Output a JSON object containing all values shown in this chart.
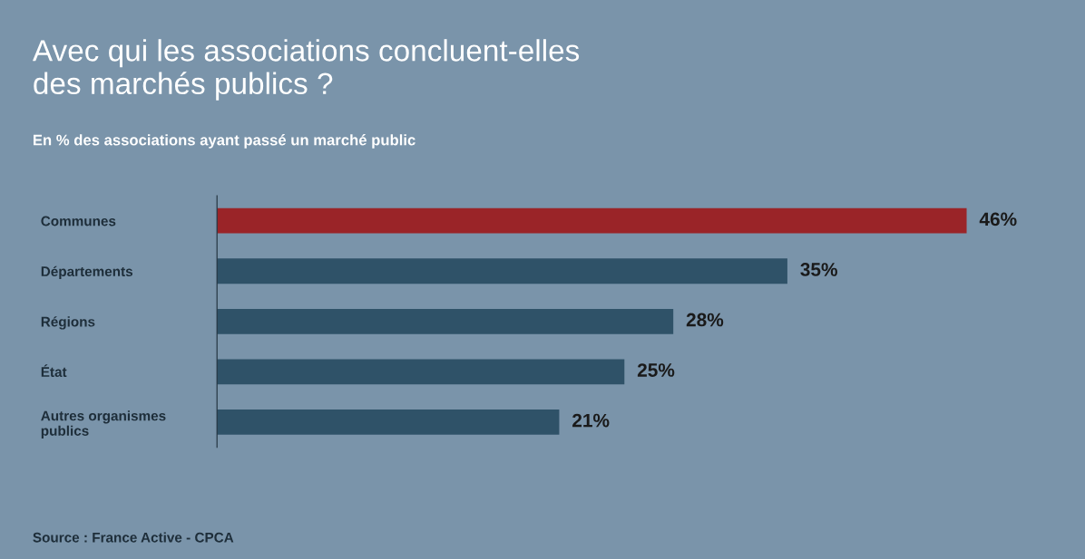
{
  "chart_data": {
    "type": "bar",
    "orientation": "horizontal",
    "title": "Avec qui les associations concluent-elles\ndes marchés publics ?",
    "subtitle": "En % des associations ayant passé un marché public",
    "categories": [
      "Communes",
      "Départements",
      "Régions",
      "État",
      "Autres organismes\npublics"
    ],
    "values": [
      46,
      35,
      28,
      25,
      21
    ],
    "colors": [
      "#9a2428",
      "#2f5268",
      "#2f5268",
      "#2f5268",
      "#2f5268"
    ],
    "value_labels": [
      "46%",
      "35%",
      "28%",
      "25%",
      "21%"
    ],
    "annotations": [
      "Source : France Active - CPCA"
    ]
  }
}
